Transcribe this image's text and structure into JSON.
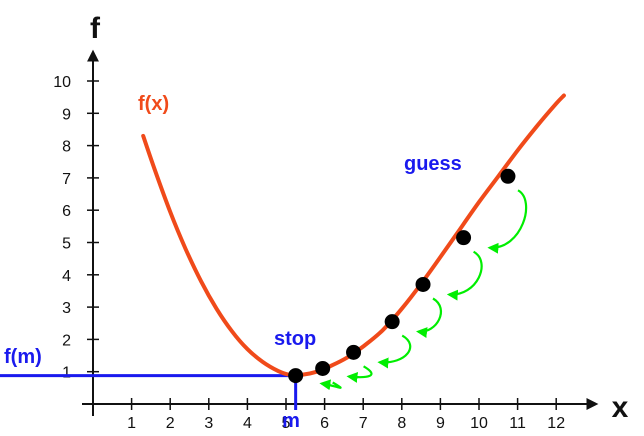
{
  "chart_data": {
    "type": "line",
    "title": "",
    "xlabel": "x",
    "ylabel": "f",
    "xlim": [
      0,
      12.5
    ],
    "ylim": [
      0,
      10.5
    ],
    "x_ticks": [
      1,
      2,
      3,
      4,
      5,
      6,
      7,
      8,
      9,
      10,
      11,
      12
    ],
    "y_ticks": [
      1,
      2,
      3,
      4,
      5,
      6,
      7,
      8,
      9,
      10
    ],
    "grid": false,
    "series": [
      {
        "name": "f(x)",
        "color": "#f04a1a",
        "x": [
          1.3,
          1.6,
          2.0,
          2.4,
          2.8,
          3.2,
          3.6,
          4.0,
          4.4,
          4.8,
          5.1,
          5.4,
          5.8,
          6.2,
          6.6,
          7.0,
          7.5,
          8.0,
          8.5,
          9.0,
          9.5,
          10.0,
          10.5,
          11.0,
          11.5,
          12.0,
          12.2
        ],
        "y": [
          8.3,
          7.25,
          5.95,
          4.8,
          3.8,
          2.95,
          2.25,
          1.7,
          1.3,
          1.02,
          0.9,
          0.9,
          1.0,
          1.2,
          1.45,
          1.78,
          2.28,
          2.95,
          3.72,
          4.55,
          5.4,
          6.25,
          7.05,
          7.85,
          8.6,
          9.3,
          9.55
        ]
      }
    ],
    "iterates": {
      "color": "#000000",
      "arrow_color": "#00ee00",
      "x": [
        10.75,
        9.6,
        8.55,
        7.75,
        6.75,
        5.95,
        5.25
      ],
      "y": [
        7.05,
        5.15,
        3.7,
        2.55,
        1.6,
        1.1,
        0.88
      ]
    },
    "minimum": {
      "x": 5.25,
      "y": 0.88,
      "color": "#1a1aee"
    },
    "annotations": {
      "curve_label": "f(x)",
      "guess_label": "guess",
      "stop_label": "stop",
      "fm_label": "f(m)",
      "m_label": "m"
    }
  }
}
